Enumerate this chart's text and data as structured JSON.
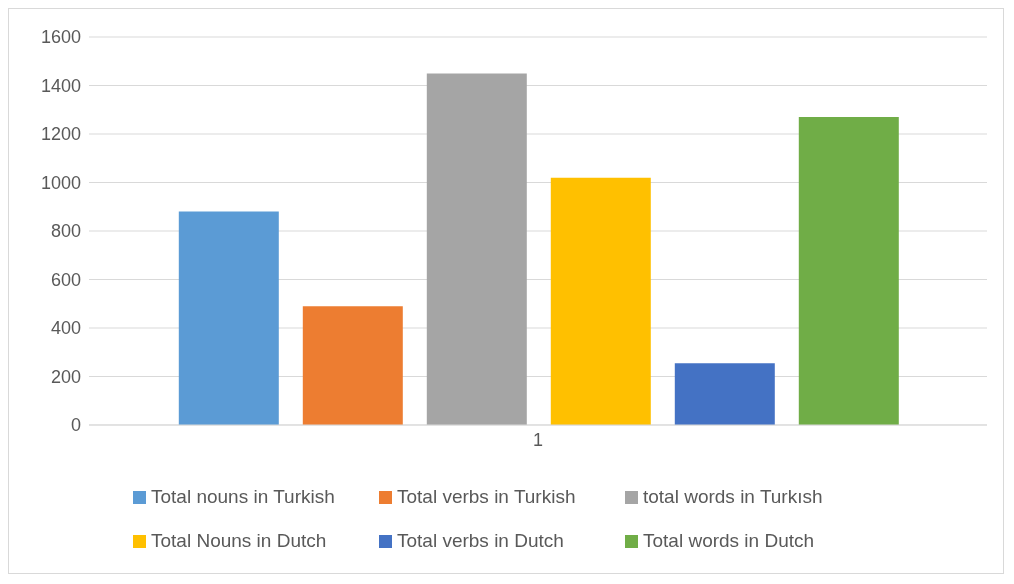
{
  "chart_data": {
    "type": "bar",
    "categories": [
      "1"
    ],
    "series": [
      {
        "name": "Total nouns in Turkish",
        "color": "#5b9bd5",
        "values": [
          880
        ]
      },
      {
        "name": "Total verbs in Turkish",
        "color": "#ed7d31",
        "values": [
          490
        ]
      },
      {
        "name": "total words in Turkısh",
        "color": "#a5a5a5",
        "values": [
          1450
        ]
      },
      {
        "name": "Total Nouns in Dutch",
        "color": "#ffc000",
        "values": [
          1020
        ]
      },
      {
        "name": "Total verbs in Dutch",
        "color": "#4472c4",
        "values": [
          255
        ]
      },
      {
        "name": "Total words in Dutch",
        "color": "#70ad47",
        "values": [
          1270
        ]
      }
    ],
    "ylim": [
      0,
      1600
    ],
    "yticks": [
      0,
      200,
      400,
      600,
      800,
      1000,
      1200,
      1400,
      1600
    ],
    "grid": "y",
    "legend": "bottom"
  }
}
